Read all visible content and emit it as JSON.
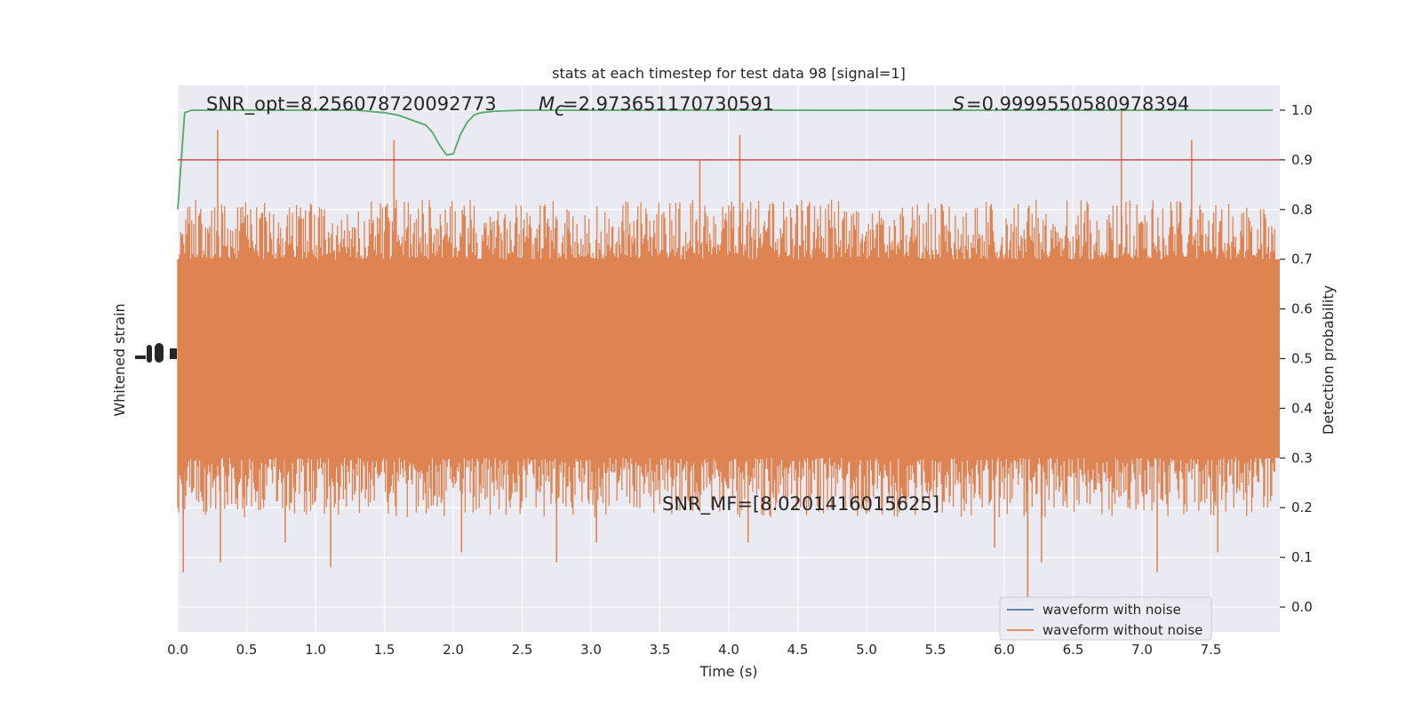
{
  "chart_data": {
    "type": "line",
    "title": "stats at each timestep for test data 98 [signal=1]",
    "xlabel": "Time (s)",
    "ylabel_left": "Whitened strain",
    "ylabel_right": "Detection probability",
    "xlim": [
      0,
      8.0
    ],
    "ylim_right": [
      -0.05,
      1.05
    ],
    "x_ticks": [
      "0.0",
      "0.5",
      "1.0",
      "1.5",
      "2.0",
      "2.5",
      "3.0",
      "3.5",
      "4.0",
      "4.5",
      "5.0",
      "5.5",
      "6.0",
      "6.5",
      "7.0",
      "7.5"
    ],
    "x_tick_values": [
      0,
      0.5,
      1.0,
      1.5,
      2.0,
      2.5,
      3.0,
      3.5,
      4.0,
      4.5,
      5.0,
      5.5,
      6.0,
      6.5,
      7.0,
      7.5
    ],
    "right_ticks": [
      "0.0",
      "0.1",
      "0.2",
      "0.3",
      "0.4",
      "0.5",
      "0.6",
      "0.7",
      "0.8",
      "0.9",
      "1.0"
    ],
    "right_tick_values": [
      0.0,
      0.1,
      0.2,
      0.3,
      0.4,
      0.5,
      0.6,
      0.7,
      0.8,
      0.9,
      1.0
    ],
    "left_tick_labels": [
      "",
      "",
      "",
      ""
    ],
    "grid": true,
    "legend_position": "lower-right",
    "threshold": {
      "value": 0.9,
      "color": "#c44e52"
    },
    "annotations": {
      "snr_opt": "SNR_opt=8.256078720092773",
      "mc": "=2.973651170730591",
      "mc_symbol": "M",
      "mc_sub": "c",
      "s": "=0.9999550580978394",
      "s_symbol": "S",
      "snr_mf": "SNR_MF=[8.0201416015625]"
    },
    "series": [
      {
        "name": "waveform with noise",
        "color": "#4c72b0",
        "kind": "noise"
      },
      {
        "name": "waveform without noise",
        "color": "#dd8452",
        "kind": "noise"
      },
      {
        "name": "",
        "color": "#55a868",
        "kind": "probability",
        "x": [
          0.0,
          0.05,
          0.1,
          0.2,
          0.5,
          1.0,
          1.3,
          1.5,
          1.6,
          1.7,
          1.8,
          1.85,
          1.9,
          1.95,
          2.0,
          2.05,
          2.1,
          2.15,
          2.2,
          2.3,
          2.5,
          3.0,
          4.0,
          5.0,
          6.0,
          7.0,
          7.95
        ],
        "y": [
          0.8,
          0.995,
          1.0,
          1.0,
          1.0,
          1.0,
          1.0,
          0.995,
          0.99,
          0.98,
          0.97,
          0.955,
          0.93,
          0.91,
          0.912,
          0.95,
          0.975,
          0.99,
          0.995,
          0.998,
          1.0,
          1.0,
          1.0,
          1.0,
          1.0,
          1.0,
          1.0
        ]
      }
    ],
    "noise_band": {
      "body_low": 0.3,
      "body_high": 0.7,
      "center": 0.5
    },
    "spikes": [
      {
        "x": 0.04,
        "y": 0.07
      },
      {
        "x": 0.29,
        "y": 0.96
      },
      {
        "x": 0.31,
        "y": 0.09
      },
      {
        "x": 1.11,
        "y": 0.08
      },
      {
        "x": 1.57,
        "y": 0.94
      },
      {
        "x": 2.06,
        "y": 0.11
      },
      {
        "x": 2.75,
        "y": 0.09
      },
      {
        "x": 4.08,
        "y": 0.95
      },
      {
        "x": 4.14,
        "y": 0.13
      },
      {
        "x": 6.17,
        "y": 0.02
      },
      {
        "x": 6.27,
        "y": 0.09
      },
      {
        "x": 6.85,
        "y": 1.0
      },
      {
        "x": 7.11,
        "y": 0.07
      },
      {
        "x": 7.36,
        "y": 0.94
      },
      {
        "x": 7.55,
        "y": 0.11
      },
      {
        "x": 0.78,
        "y": 0.13
      },
      {
        "x": 3.79,
        "y": 0.9
      },
      {
        "x": 5.93,
        "y": 0.12
      },
      {
        "x": 3.04,
        "y": 0.13
      }
    ]
  }
}
